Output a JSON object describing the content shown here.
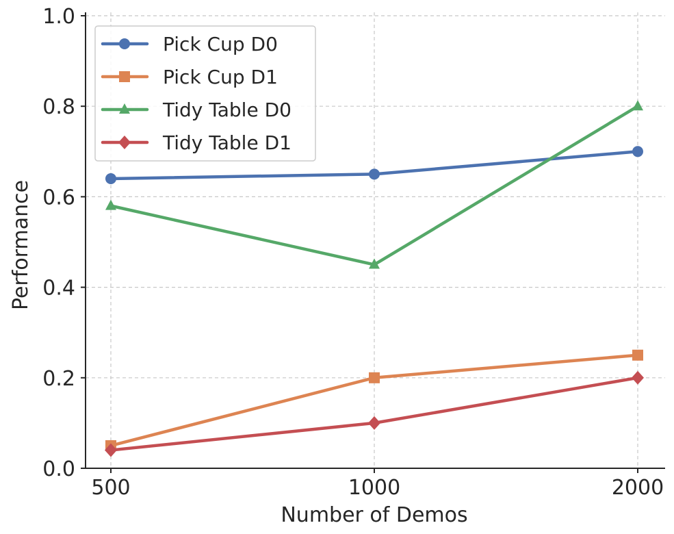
{
  "chart_data": {
    "type": "line",
    "title": "",
    "xlabel": "Number of Demos",
    "ylabel": "Performance",
    "x": [
      500,
      1000,
      2000
    ],
    "x_tick_labels": [
      "500",
      "1000",
      "2000"
    ],
    "ylim": [
      0.0,
      1.0
    ],
    "y_ticks": [
      0.0,
      0.2,
      0.4,
      0.6,
      0.8,
      1.0
    ],
    "y_tick_labels": [
      "0.0",
      "0.2",
      "0.4",
      "0.6",
      "0.8",
      "1.0"
    ],
    "grid": true,
    "legend_position": "top-left",
    "series": [
      {
        "name": "Pick Cup D0",
        "marker": "circle",
        "color": "#4c72b0",
        "values": [
          0.64,
          0.65,
          0.7
        ]
      },
      {
        "name": "Pick Cup D1",
        "marker": "square",
        "color": "#dd8452",
        "values": [
          0.05,
          0.2,
          0.25
        ]
      },
      {
        "name": "Tidy Table D0",
        "marker": "triangle",
        "color": "#55a868",
        "values": [
          0.58,
          0.45,
          0.8
        ]
      },
      {
        "name": "Tidy Table D1",
        "marker": "diamond",
        "color": "#c44e52",
        "values": [
          0.04,
          0.1,
          0.2
        ]
      }
    ]
  }
}
